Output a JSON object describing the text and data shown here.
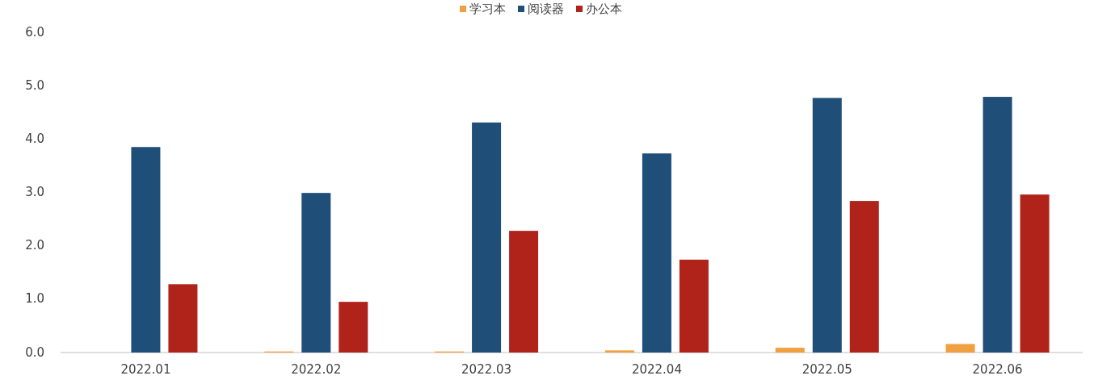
{
  "chart_data": {
    "type": "bar",
    "categories": [
      "2022.01",
      "2022.02",
      "2022.03",
      "2022.04",
      "2022.05",
      "2022.06"
    ],
    "series": [
      {
        "name": "学习本",
        "color": "#f0a040",
        "values": [
          0,
          0.02,
          0.02,
          0.04,
          0.09,
          0.16
        ]
      },
      {
        "name": "阅读器",
        "color": "#1f4e79",
        "values": [
          3.85,
          2.99,
          4.31,
          3.73,
          4.77,
          4.79
        ]
      },
      {
        "name": "办公本",
        "color": "#b0231a",
        "values": [
          1.28,
          0.95,
          2.28,
          1.74,
          2.84,
          2.96
        ]
      }
    ],
    "ylim": [
      0,
      6
    ],
    "yticks": [
      {
        "value": 0,
        "label": "0.0"
      },
      {
        "value": 1,
        "label": "1.0"
      },
      {
        "value": 2,
        "label": "2.0"
      },
      {
        "value": 3,
        "label": "3.0"
      },
      {
        "value": 4,
        "label": "4.0"
      },
      {
        "value": 5,
        "label": "5.0"
      },
      {
        "value": 6,
        "label": "6.0"
      }
    ],
    "grid": false,
    "legend": "top"
  }
}
